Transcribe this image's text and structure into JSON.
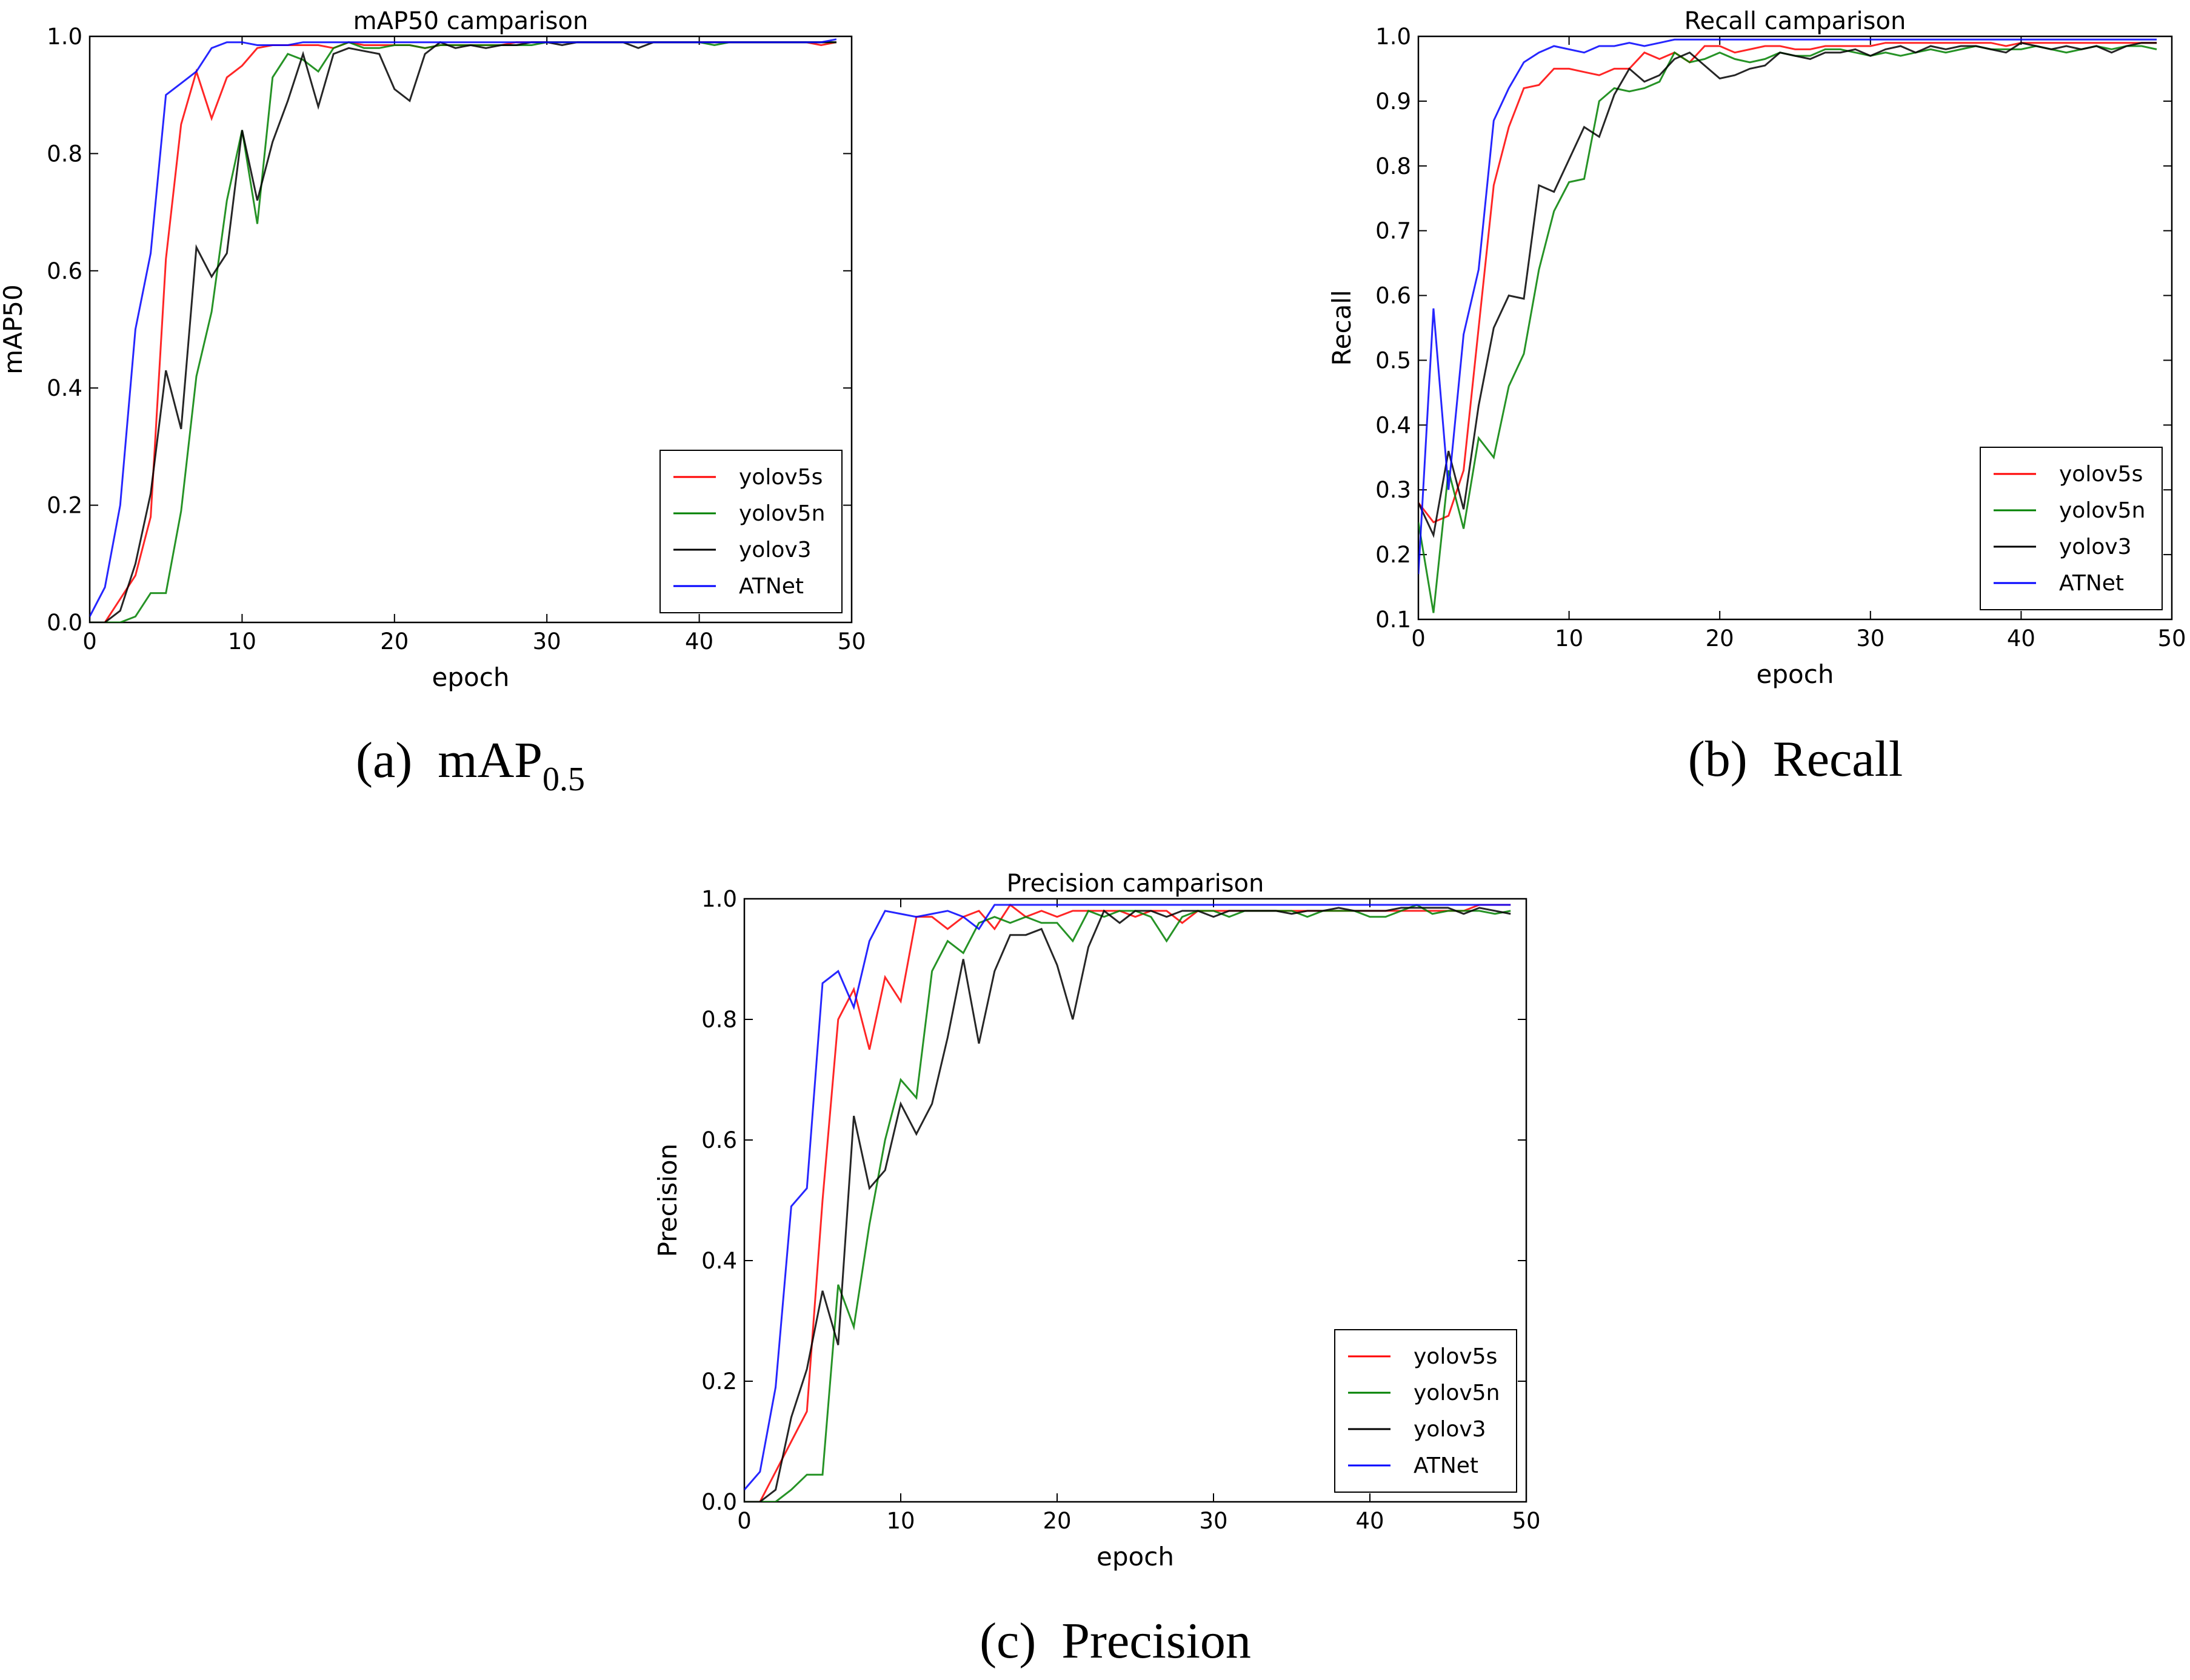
{
  "chart_data": [
    {
      "type": "line",
      "title": "mAP50 camparison",
      "xlabel": "epoch",
      "ylabel": "mAP50",
      "xlim": [
        0,
        50
      ],
      "ylim": [
        0.0,
        1.0
      ],
      "xticks": [
        0,
        10,
        20,
        30,
        40,
        50
      ],
      "yticks": [
        0.0,
        0.2,
        0.4,
        0.6,
        0.8,
        1.0
      ],
      "tick_labels_x": [
        "0",
        "10",
        "20",
        "30",
        "40",
        "50"
      ],
      "tick_labels_y": [
        "0.0",
        "0.2",
        "0.4",
        "0.6",
        "0.8",
        "1.0"
      ],
      "legend_position": "lower-right",
      "caption": {
        "label": "(a)",
        "text": "mAP",
        "subscript": "0.5"
      },
      "x": [
        0,
        1,
        2,
        3,
        4,
        5,
        6,
        7,
        8,
        9,
        10,
        11,
        12,
        13,
        14,
        15,
        16,
        17,
        18,
        19,
        20,
        21,
        22,
        23,
        24,
        25,
        26,
        27,
        28,
        29,
        30,
        31,
        32,
        33,
        34,
        35,
        36,
        37,
        38,
        39,
        40,
        41,
        42,
        43,
        44,
        45,
        46,
        47,
        48,
        49
      ],
      "series": [
        {
          "name": "yolov5s",
          "color": "#ff0000",
          "values": [
            0.0,
            0.0,
            0.04,
            0.08,
            0.18,
            0.62,
            0.85,
            0.94,
            0.86,
            0.93,
            0.95,
            0.98,
            0.985,
            0.985,
            0.985,
            0.985,
            0.98,
            0.99,
            0.985,
            0.985,
            0.985,
            0.985,
            0.98,
            0.985,
            0.985,
            0.985,
            0.985,
            0.985,
            0.99,
            0.99,
            0.99,
            0.99,
            0.99,
            0.99,
            0.99,
            0.99,
            0.99,
            0.99,
            0.99,
            0.99,
            0.99,
            0.99,
            0.99,
            0.99,
            0.99,
            0.99,
            0.99,
            0.99,
            0.985,
            0.99
          ]
        },
        {
          "name": "yolov5n",
          "color": "#008000",
          "values": [
            0.0,
            0.0,
            0.0,
            0.01,
            0.05,
            0.05,
            0.19,
            0.42,
            0.53,
            0.72,
            0.84,
            0.68,
            0.93,
            0.97,
            0.96,
            0.94,
            0.98,
            0.99,
            0.98,
            0.98,
            0.985,
            0.985,
            0.98,
            0.985,
            0.985,
            0.985,
            0.985,
            0.985,
            0.985,
            0.985,
            0.99,
            0.99,
            0.99,
            0.99,
            0.99,
            0.99,
            0.99,
            0.99,
            0.99,
            0.99,
            0.99,
            0.985,
            0.99,
            0.99,
            0.99,
            0.99,
            0.99,
            0.99,
            0.99,
            0.99
          ]
        },
        {
          "name": "yolov3",
          "color": "#000000",
          "values": [
            0.0,
            0.0,
            0.02,
            0.1,
            0.22,
            0.43,
            0.33,
            0.64,
            0.59,
            0.63,
            0.84,
            0.72,
            0.82,
            0.89,
            0.97,
            0.88,
            0.97,
            0.98,
            0.975,
            0.97,
            0.91,
            0.89,
            0.97,
            0.99,
            0.98,
            0.985,
            0.98,
            0.985,
            0.985,
            0.99,
            0.99,
            0.985,
            0.99,
            0.99,
            0.99,
            0.99,
            0.98,
            0.99,
            0.99,
            0.99,
            0.99,
            0.99,
            0.99,
            0.99,
            0.99,
            0.99,
            0.99,
            0.99,
            0.99,
            0.99
          ]
        },
        {
          "name": "ATNet",
          "color": "#0000ff",
          "values": [
            0.01,
            0.06,
            0.2,
            0.5,
            0.63,
            0.9,
            0.92,
            0.94,
            0.98,
            0.99,
            0.99,
            0.985,
            0.985,
            0.985,
            0.99,
            0.99,
            0.99,
            0.99,
            0.99,
            0.99,
            0.99,
            0.99,
            0.99,
            0.99,
            0.99,
            0.99,
            0.99,
            0.99,
            0.99,
            0.99,
            0.99,
            0.99,
            0.99,
            0.99,
            0.99,
            0.99,
            0.99,
            0.99,
            0.99,
            0.99,
            0.99,
            0.99,
            0.99,
            0.99,
            0.99,
            0.99,
            0.99,
            0.99,
            0.99,
            0.995
          ]
        }
      ]
    },
    {
      "type": "line",
      "title": "Recall camparison",
      "xlabel": "epoch",
      "ylabel": "Recall",
      "xlim": [
        0,
        50
      ],
      "ylim": [
        0.1,
        1.0
      ],
      "xticks": [
        0,
        10,
        20,
        30,
        40,
        50
      ],
      "yticks": [
        0.1,
        0.2,
        0.3,
        0.4,
        0.5,
        0.6,
        0.7,
        0.8,
        0.9,
        1.0
      ],
      "tick_labels_x": [
        "0",
        "10",
        "20",
        "30",
        "40",
        "50"
      ],
      "tick_labels_y": [
        "0.1",
        "0.2",
        "0.3",
        "0.4",
        "0.5",
        "0.6",
        "0.7",
        "0.8",
        "0.9",
        "1.0"
      ],
      "legend_position": "lower-right",
      "caption": {
        "label": "(b)",
        "text": "Recall",
        "subscript": ""
      },
      "x": [
        0,
        1,
        2,
        3,
        4,
        5,
        6,
        7,
        8,
        9,
        10,
        11,
        12,
        13,
        14,
        15,
        16,
        17,
        18,
        19,
        20,
        21,
        22,
        23,
        24,
        25,
        26,
        27,
        28,
        29,
        30,
        31,
        32,
        33,
        34,
        35,
        36,
        37,
        38,
        39,
        40,
        41,
        42,
        43,
        44,
        45,
        46,
        47,
        48,
        49
      ],
      "series": [
        {
          "name": "yolov5s",
          "color": "#ff0000",
          "values": [
            0.28,
            0.25,
            0.26,
            0.33,
            0.55,
            0.77,
            0.86,
            0.92,
            0.925,
            0.95,
            0.95,
            0.945,
            0.94,
            0.95,
            0.95,
            0.975,
            0.965,
            0.975,
            0.96,
            0.985,
            0.985,
            0.975,
            0.98,
            0.985,
            0.985,
            0.98,
            0.98,
            0.985,
            0.985,
            0.985,
            0.985,
            0.99,
            0.99,
            0.99,
            0.99,
            0.99,
            0.99,
            0.99,
            0.99,
            0.985,
            0.99,
            0.99,
            0.99,
            0.99,
            0.99,
            0.99,
            0.99,
            0.99,
            0.99,
            0.99
          ]
        },
        {
          "name": "yolov5n",
          "color": "#008000",
          "values": [
            0.25,
            0.11,
            0.33,
            0.24,
            0.38,
            0.35,
            0.46,
            0.51,
            0.64,
            0.73,
            0.775,
            0.78,
            0.9,
            0.92,
            0.915,
            0.92,
            0.93,
            0.975,
            0.96,
            0.965,
            0.975,
            0.965,
            0.96,
            0.965,
            0.975,
            0.97,
            0.97,
            0.98,
            0.98,
            0.975,
            0.97,
            0.975,
            0.97,
            0.975,
            0.98,
            0.975,
            0.98,
            0.985,
            0.98,
            0.98,
            0.98,
            0.985,
            0.98,
            0.975,
            0.98,
            0.985,
            0.98,
            0.985,
            0.985,
            0.98
          ]
        },
        {
          "name": "yolov3",
          "color": "#000000",
          "values": [
            0.28,
            0.23,
            0.36,
            0.27,
            0.43,
            0.55,
            0.6,
            0.595,
            0.77,
            0.76,
            0.81,
            0.86,
            0.845,
            0.91,
            0.95,
            0.93,
            0.94,
            0.965,
            0.975,
            0.955,
            0.935,
            0.94,
            0.95,
            0.955,
            0.975,
            0.97,
            0.965,
            0.975,
            0.975,
            0.98,
            0.97,
            0.98,
            0.985,
            0.975,
            0.985,
            0.98,
            0.985,
            0.985,
            0.98,
            0.975,
            0.99,
            0.985,
            0.98,
            0.985,
            0.98,
            0.985,
            0.975,
            0.985,
            0.99,
            0.99
          ]
        },
        {
          "name": "ATNet",
          "color": "#0000ff",
          "values": [
            0.17,
            0.58,
            0.3,
            0.54,
            0.64,
            0.87,
            0.92,
            0.96,
            0.975,
            0.985,
            0.98,
            0.975,
            0.985,
            0.985,
            0.99,
            0.985,
            0.99,
            0.995,
            0.995,
            0.995,
            0.995,
            0.995,
            0.995,
            0.995,
            0.995,
            0.995,
            0.995,
            0.995,
            0.995,
            0.995,
            0.995,
            0.995,
            0.995,
            0.995,
            0.995,
            0.995,
            0.995,
            0.995,
            0.995,
            0.995,
            0.995,
            0.995,
            0.995,
            0.995,
            0.995,
            0.995,
            0.995,
            0.995,
            0.995,
            0.995
          ]
        }
      ]
    },
    {
      "type": "line",
      "title": "Precision camparison",
      "xlabel": "epoch",
      "ylabel": "Precision",
      "xlim": [
        0,
        50
      ],
      "ylim": [
        0.0,
        1.0
      ],
      "xticks": [
        0,
        10,
        20,
        30,
        40,
        50
      ],
      "yticks": [
        0.0,
        0.2,
        0.4,
        0.6,
        0.8,
        1.0
      ],
      "tick_labels_x": [
        "0",
        "10",
        "20",
        "30",
        "40",
        "50"
      ],
      "tick_labels_y": [
        "0.0",
        "0.2",
        "0.4",
        "0.6",
        "0.8",
        "1.0"
      ],
      "legend_position": "lower-right",
      "caption": {
        "label": "(c)",
        "text": "Precision",
        "subscript": ""
      },
      "x": [
        0,
        1,
        2,
        3,
        4,
        5,
        6,
        7,
        8,
        9,
        10,
        11,
        12,
        13,
        14,
        15,
        16,
        17,
        18,
        19,
        20,
        21,
        22,
        23,
        24,
        25,
        26,
        27,
        28,
        29,
        30,
        31,
        32,
        33,
        34,
        35,
        36,
        37,
        38,
        39,
        40,
        41,
        42,
        43,
        44,
        45,
        46,
        47,
        48,
        49
      ],
      "series": [
        {
          "name": "yolov5s",
          "color": "#ff0000",
          "values": [
            0.0,
            0.0,
            0.05,
            0.1,
            0.15,
            0.5,
            0.8,
            0.85,
            0.75,
            0.87,
            0.83,
            0.97,
            0.97,
            0.95,
            0.97,
            0.98,
            0.95,
            0.99,
            0.97,
            0.98,
            0.97,
            0.98,
            0.98,
            0.98,
            0.98,
            0.97,
            0.98,
            0.98,
            0.96,
            0.98,
            0.98,
            0.98,
            0.98,
            0.98,
            0.98,
            0.98,
            0.98,
            0.98,
            0.98,
            0.98,
            0.98,
            0.98,
            0.98,
            0.98,
            0.98,
            0.98,
            0.98,
            0.99,
            0.99,
            0.99
          ]
        },
        {
          "name": "yolov5n",
          "color": "#008000",
          "values": [
            0.0,
            0.0,
            0.0,
            0.02,
            0.045,
            0.045,
            0.36,
            0.29,
            0.46,
            0.6,
            0.7,
            0.67,
            0.88,
            0.93,
            0.91,
            0.96,
            0.97,
            0.96,
            0.97,
            0.96,
            0.96,
            0.93,
            0.98,
            0.97,
            0.98,
            0.98,
            0.97,
            0.93,
            0.97,
            0.98,
            0.98,
            0.97,
            0.98,
            0.98,
            0.98,
            0.98,
            0.97,
            0.98,
            0.98,
            0.98,
            0.97,
            0.97,
            0.98,
            0.99,
            0.975,
            0.98,
            0.98,
            0.98,
            0.975,
            0.98
          ]
        },
        {
          "name": "yolov3",
          "color": "#000000",
          "values": [
            0.0,
            0.0,
            0.02,
            0.14,
            0.22,
            0.35,
            0.26,
            0.64,
            0.52,
            0.55,
            0.66,
            0.61,
            0.66,
            0.77,
            0.9,
            0.76,
            0.88,
            0.94,
            0.94,
            0.95,
            0.89,
            0.8,
            0.92,
            0.98,
            0.96,
            0.98,
            0.98,
            0.97,
            0.98,
            0.98,
            0.97,
            0.98,
            0.98,
            0.98,
            0.98,
            0.975,
            0.98,
            0.98,
            0.985,
            0.98,
            0.98,
            0.98,
            0.985,
            0.985,
            0.985,
            0.985,
            0.975,
            0.985,
            0.98,
            0.975
          ]
        },
        {
          "name": "ATNet",
          "color": "#0000ff",
          "values": [
            0.02,
            0.05,
            0.19,
            0.49,
            0.52,
            0.86,
            0.88,
            0.82,
            0.93,
            0.98,
            0.975,
            0.97,
            0.975,
            0.98,
            0.97,
            0.95,
            0.99,
            0.99,
            0.99,
            0.99,
            0.99,
            0.99,
            0.99,
            0.99,
            0.99,
            0.99,
            0.99,
            0.99,
            0.99,
            0.99,
            0.99,
            0.99,
            0.99,
            0.99,
            0.99,
            0.99,
            0.99,
            0.99,
            0.99,
            0.99,
            0.99,
            0.99,
            0.99,
            0.99,
            0.99,
            0.99,
            0.99,
            0.99,
            0.99,
            0.99
          ]
        }
      ]
    }
  ]
}
